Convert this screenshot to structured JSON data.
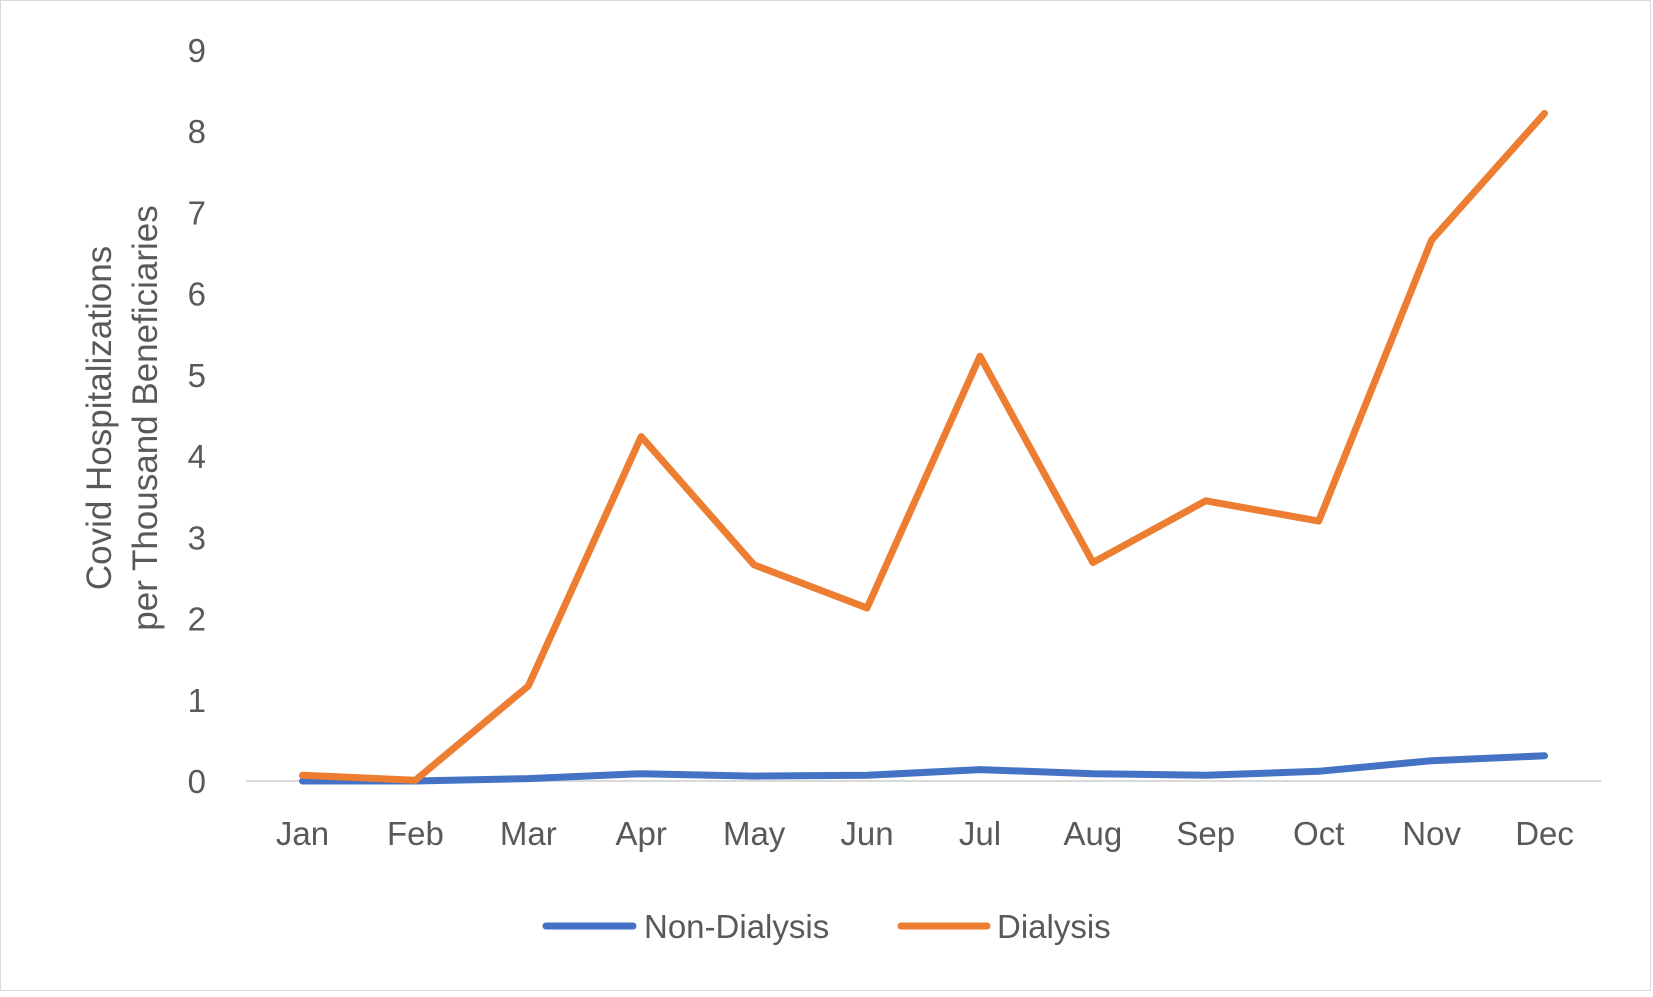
{
  "chart_data": {
    "type": "line",
    "title": "",
    "xlabel": "",
    "ylabel_lines": [
      "Covid Hospitalizations",
      "per Thousand Beneficiaries"
    ],
    "categories": [
      "Jan",
      "Feb",
      "Mar",
      "Apr",
      "May",
      "Jun",
      "Jul",
      "Aug",
      "Sep",
      "Oct",
      "Nov",
      "Dec"
    ],
    "ylim": [
      0,
      9
    ],
    "yticks": [
      0,
      1,
      2,
      3,
      4,
      5,
      6,
      7,
      8,
      9
    ],
    "grid": false,
    "legend_position": "bottom",
    "series": [
      {
        "name": "Non-Dialysis",
        "color": "#4472C4",
        "values": [
          0.0,
          0.0,
          0.03,
          0.09,
          0.06,
          0.07,
          0.14,
          0.09,
          0.07,
          0.12,
          0.25,
          0.31
        ]
      },
      {
        "name": "Dialysis",
        "color": "#ED7D31",
        "values": [
          0.07,
          0.01,
          1.17,
          4.24,
          2.66,
          2.13,
          5.23,
          2.69,
          3.45,
          3.2,
          6.66,
          8.22
        ]
      }
    ]
  }
}
